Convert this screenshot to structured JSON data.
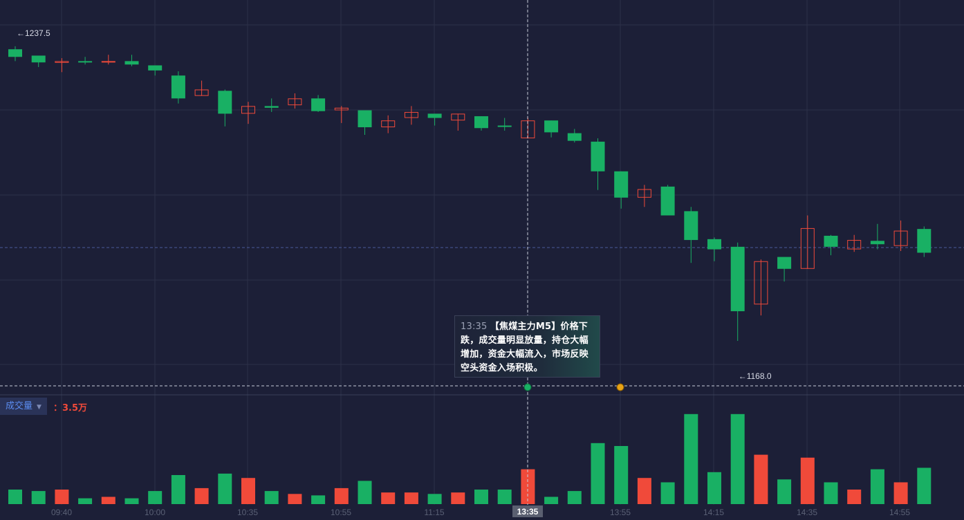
{
  "chart_data": {
    "type": "candlestick",
    "x_tick_labels": [
      "09:40",
      "10:00",
      "10:35",
      "10:55",
      "11:15",
      "13:35",
      "13:55",
      "14:15",
      "14:35",
      "14:55"
    ],
    "crosshair_time": "13:35",
    "max_marker": "←1237.5",
    "min_marker": "←1168.0",
    "candles": [
      {
        "o": 1235.0,
        "h": 1237.5,
        "l": 1234.0,
        "c": 1236.8,
        "dir": "down"
      },
      {
        "o": 1233.7,
        "h": 1235.0,
        "l": 1232.6,
        "c": 1235.3,
        "dir": "down"
      },
      {
        "o": 1233.6,
        "h": 1234.7,
        "l": 1231.4,
        "c": 1234.0,
        "dir": "up"
      },
      {
        "o": 1233.7,
        "h": 1235.0,
        "l": 1233.2,
        "c": 1234.0,
        "dir": "down"
      },
      {
        "o": 1233.7,
        "h": 1235.5,
        "l": 1233.2,
        "c": 1234.0,
        "dir": "up"
      },
      {
        "o": 1233.2,
        "h": 1235.5,
        "l": 1232.8,
        "c": 1234.0,
        "dir": "down"
      },
      {
        "o": 1231.8,
        "h": 1232.8,
        "l": 1230.6,
        "c": 1233.0,
        "dir": "down"
      },
      {
        "o": 1225.2,
        "h": 1231.6,
        "l": 1224.0,
        "c": 1230.6,
        "dir": "down"
      },
      {
        "o": 1225.8,
        "h": 1229.4,
        "l": 1225.8,
        "c": 1227.3,
        "dir": "up"
      },
      {
        "o": 1221.6,
        "h": 1227.3,
        "l": 1218.6,
        "c": 1227.0,
        "dir": "down"
      },
      {
        "o": 1221.6,
        "h": 1224.4,
        "l": 1219.2,
        "c": 1223.4,
        "dir": "up"
      },
      {
        "o": 1223.0,
        "h": 1225.2,
        "l": 1222.0,
        "c": 1223.4,
        "dir": "down"
      },
      {
        "o": 1223.6,
        "h": 1226.4,
        "l": 1222.8,
        "c": 1225.2,
        "dir": "up"
      },
      {
        "o": 1222.2,
        "h": 1226.0,
        "l": 1222.0,
        "c": 1225.2,
        "dir": "down"
      },
      {
        "o": 1222.4,
        "h": 1223.4,
        "l": 1219.4,
        "c": 1223.0,
        "dir": "up"
      },
      {
        "o": 1218.4,
        "h": 1222.4,
        "l": 1216.6,
        "c": 1222.4,
        "dir": "down"
      },
      {
        "o": 1218.4,
        "h": 1221.2,
        "l": 1217.0,
        "c": 1220.0,
        "dir": "up"
      },
      {
        "o": 1220.6,
        "h": 1223.4,
        "l": 1219.0,
        "c": 1222.0,
        "dir": "up"
      },
      {
        "o": 1220.6,
        "h": 1221.6,
        "l": 1218.8,
        "c": 1221.6,
        "dir": "down"
      },
      {
        "o": 1220.0,
        "h": 1221.6,
        "l": 1217.6,
        "c": 1221.6,
        "dir": "up"
      },
      {
        "o": 1218.2,
        "h": 1221.0,
        "l": 1217.6,
        "c": 1221.0,
        "dir": "down"
      },
      {
        "o": 1218.6,
        "h": 1220.6,
        "l": 1217.6,
        "c": 1218.8,
        "dir": "down"
      },
      {
        "o": 1215.8,
        "h": 1220.6,
        "l": 1215.8,
        "c": 1220.0,
        "dir": "up"
      },
      {
        "o": 1217.2,
        "h": 1220.0,
        "l": 1216.0,
        "c": 1220.0,
        "dir": "down"
      },
      {
        "o": 1215.2,
        "h": 1218.0,
        "l": 1214.8,
        "c": 1217.0,
        "dir": "down"
      },
      {
        "o": 1208.0,
        "h": 1215.8,
        "l": 1203.6,
        "c": 1215.0,
        "dir": "down"
      },
      {
        "o": 1201.8,
        "h": 1208.0,
        "l": 1199.2,
        "c": 1208.0,
        "dir": "down"
      },
      {
        "o": 1201.8,
        "h": 1204.8,
        "l": 1199.6,
        "c": 1203.8,
        "dir": "up"
      },
      {
        "o": 1197.6,
        "h": 1204.8,
        "l": 1197.6,
        "c": 1204.4,
        "dir": "down"
      },
      {
        "o": 1191.8,
        "h": 1199.6,
        "l": 1186.4,
        "c": 1198.6,
        "dir": "down"
      },
      {
        "o": 1189.6,
        "h": 1192.4,
        "l": 1186.8,
        "c": 1192.0,
        "dir": "down"
      },
      {
        "o": 1175.0,
        "h": 1191.2,
        "l": 1168.0,
        "c": 1190.2,
        "dir": "down"
      },
      {
        "o": 1176.6,
        "h": 1187.2,
        "l": 1174.0,
        "c": 1186.8,
        "dir": "up"
      },
      {
        "o": 1185.0,
        "h": 1187.2,
        "l": 1182.0,
        "c": 1187.8,
        "dir": "down"
      },
      {
        "o": 1185.0,
        "h": 1197.6,
        "l": 1185.0,
        "c": 1194.6,
        "dir": "up"
      },
      {
        "o": 1190.2,
        "h": 1193.0,
        "l": 1188.2,
        "c": 1192.8,
        "dir": "down"
      },
      {
        "o": 1189.6,
        "h": 1193.0,
        "l": 1189.0,
        "c": 1191.8,
        "dir": "up"
      },
      {
        "o": 1190.8,
        "h": 1195.6,
        "l": 1189.6,
        "c": 1191.6,
        "dir": "down"
      },
      {
        "o": 1190.4,
        "h": 1196.4,
        "l": 1189.2,
        "c": 1194.0,
        "dir": "up"
      },
      {
        "o": 1188.8,
        "h": 1195.0,
        "l": 1187.8,
        "c": 1194.4,
        "dir": "down"
      }
    ],
    "volume": {
      "label": "成交量",
      "value_text": "：3.5万",
      "bars": [
        {
          "v": 1.0,
          "dir": "down"
        },
        {
          "v": 0.9,
          "dir": "down"
        },
        {
          "v": 1.0,
          "dir": "up"
        },
        {
          "v": 0.4,
          "dir": "down"
        },
        {
          "v": 0.5,
          "dir": "up"
        },
        {
          "v": 0.4,
          "dir": "down"
        },
        {
          "v": 0.9,
          "dir": "down"
        },
        {
          "v": 2.0,
          "dir": "down"
        },
        {
          "v": 1.1,
          "dir": "up"
        },
        {
          "v": 2.1,
          "dir": "down"
        },
        {
          "v": 1.8,
          "dir": "up"
        },
        {
          "v": 0.9,
          "dir": "down"
        },
        {
          "v": 0.7,
          "dir": "up"
        },
        {
          "v": 0.6,
          "dir": "down"
        },
        {
          "v": 1.1,
          "dir": "up"
        },
        {
          "v": 1.6,
          "dir": "down"
        },
        {
          "v": 0.8,
          "dir": "up"
        },
        {
          "v": 0.8,
          "dir": "up"
        },
        {
          "v": 0.7,
          "dir": "down"
        },
        {
          "v": 0.8,
          "dir": "up"
        },
        {
          "v": 1.0,
          "dir": "down"
        },
        {
          "v": 1.0,
          "dir": "down"
        },
        {
          "v": 2.4,
          "dir": "up"
        },
        {
          "v": 0.5,
          "dir": "down"
        },
        {
          "v": 0.9,
          "dir": "down"
        },
        {
          "v": 4.2,
          "dir": "down"
        },
        {
          "v": 4.0,
          "dir": "down"
        },
        {
          "v": 1.8,
          "dir": "up"
        },
        {
          "v": 1.5,
          "dir": "down"
        },
        {
          "v": 6.2,
          "dir": "down"
        },
        {
          "v": 2.2,
          "dir": "down"
        },
        {
          "v": 6.2,
          "dir": "down"
        },
        {
          "v": 3.4,
          "dir": "up"
        },
        {
          "v": 1.7,
          "dir": "down"
        },
        {
          "v": 3.2,
          "dir": "up"
        },
        {
          "v": 1.5,
          "dir": "down"
        },
        {
          "v": 1.0,
          "dir": "up"
        },
        {
          "v": 2.4,
          "dir": "down"
        },
        {
          "v": 1.5,
          "dir": "up"
        },
        {
          "v": 2.5,
          "dir": "down"
        }
      ]
    },
    "annotation": {
      "time": "13:35",
      "text": "【焦煤主力M5】价格下跌，成交量明显放量，持仓大幅增加，资金大幅流入，市场反映空头资金入场积极。"
    },
    "event_markers": [
      "13:35",
      "13:55"
    ]
  },
  "colors": {
    "background": "#1c1f37",
    "up": "#f04a3a",
    "down": "#19b064",
    "grid": "#2d3148",
    "axis_text": "#5a6075"
  }
}
